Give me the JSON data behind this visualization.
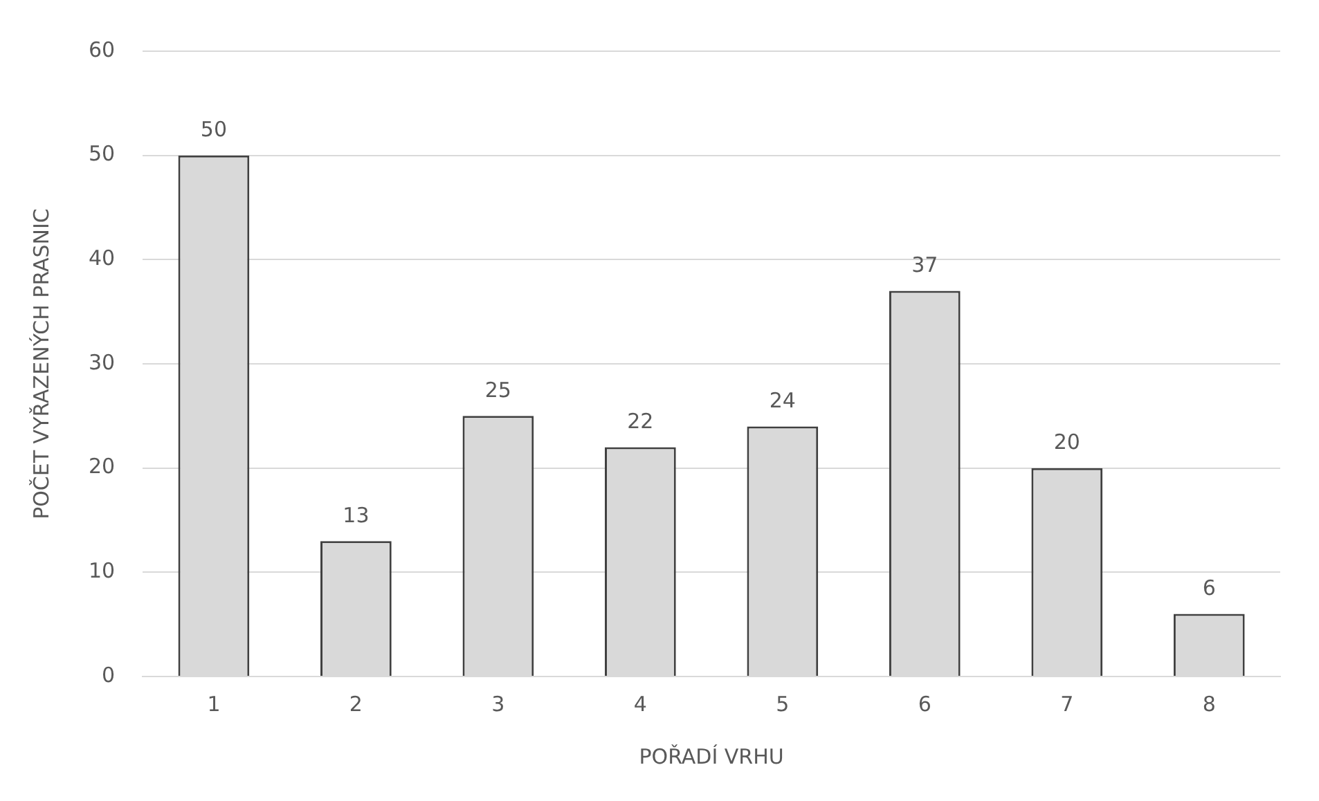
{
  "chart_data": {
    "type": "bar",
    "xlabel": "POŘADÍ VRHU",
    "ylabel": "POČET VYŘAZENÝCH PRASNIC",
    "categories": [
      "1",
      "2",
      "3",
      "4",
      "5",
      "6",
      "7",
      "8"
    ],
    "values": [
      50,
      13,
      25,
      22,
      24,
      37,
      20,
      6
    ],
    "color": "#d9d9d9",
    "ylim": [
      0,
      60
    ],
    "yticks": [
      0,
      10,
      20,
      30,
      40,
      50,
      60
    ],
    "grid": "y",
    "data_labels": true,
    "legend": false
  }
}
